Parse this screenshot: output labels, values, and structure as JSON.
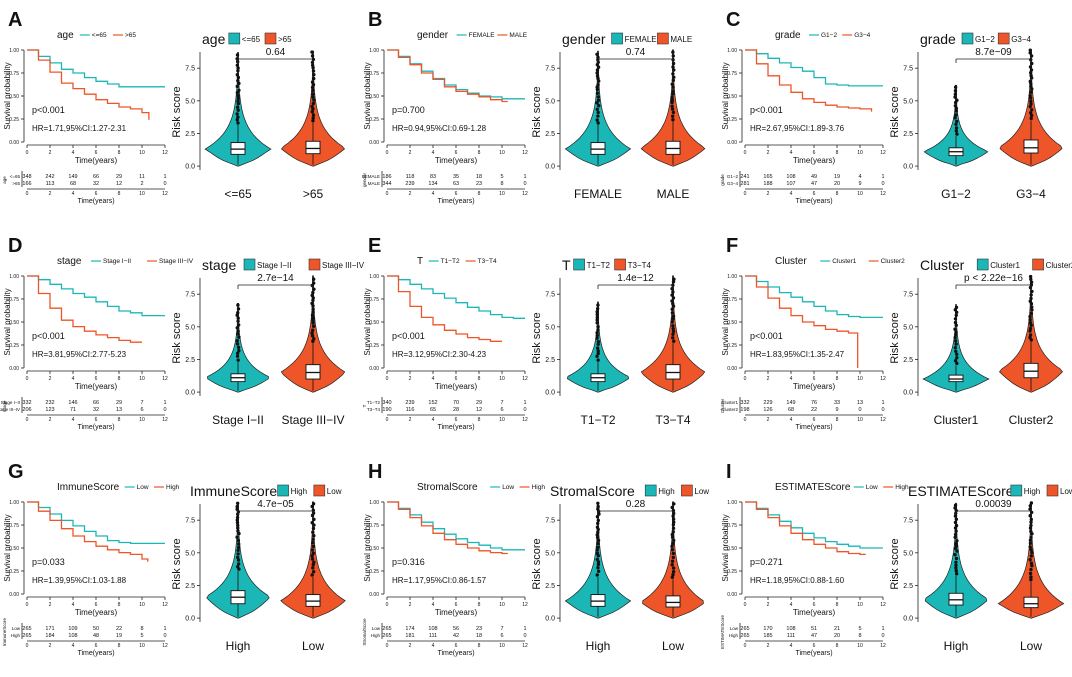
{
  "colors": {
    "low_group": "#1BB7B7",
    "high_group": "#EE5528",
    "axis": "#222222"
  },
  "common": {
    "survival_ylabel": "Survival probability",
    "time_xlabel": "Time(years)",
    "risk_ylabel": "Risk score",
    "time_ticks": [
      "0",
      "2",
      "4",
      "6",
      "8",
      "10",
      "12"
    ],
    "surv_ticks": [
      "0.00",
      "0.25",
      "0.50",
      "0.75",
      "1.00"
    ],
    "risk_ticks": [
      "0.0",
      "2.5",
      "5.0",
      "7.5"
    ]
  },
  "chart_data": [
    {
      "type": "composite-survival-violin",
      "panel": "A",
      "variable": "age",
      "groups": [
        "<=65",
        ">65"
      ],
      "km_legend": [
        "<=65",
        ">65"
      ],
      "p_value": "p<0.001",
      "hr_text": "HR=1.71,95%CI:1.27-2.31",
      "km": {
        "low": {
          "t": [
            0,
            1,
            2,
            3,
            4,
            5,
            6,
            7,
            8,
            9,
            10,
            11,
            12
          ],
          "s": [
            1,
            0.93,
            0.86,
            0.79,
            0.75,
            0.7,
            0.66,
            0.63,
            0.6,
            0.6,
            0.6,
            0.6,
            0.6
          ]
        },
        "high": {
          "t": [
            0,
            1,
            2,
            3,
            4,
            5,
            6,
            7,
            8,
            9,
            10,
            10.6
          ],
          "s": [
            1,
            0.89,
            0.76,
            0.64,
            0.58,
            0.52,
            0.46,
            0.42,
            0.38,
            0.36,
            0.32,
            0.24
          ]
        }
      },
      "risk_table": {
        "low": [
          "348",
          "242",
          "149",
          "66",
          "29",
          "11",
          "1"
        ],
        "high": [
          "166",
          "113",
          "68",
          "32",
          "12",
          "2",
          "0"
        ]
      },
      "violin_p": "0.64",
      "violin": {
        "low": {
          "median": 1.3,
          "q1": 0.9,
          "q3": 1.8,
          "max": 8.7
        },
        "high": {
          "median": 1.35,
          "q1": 0.95,
          "q3": 1.9,
          "max": 8.8
        }
      }
    },
    {
      "type": "composite-survival-violin",
      "panel": "B",
      "variable": "gender",
      "groups": [
        "FEMALE",
        "MALE"
      ],
      "km_legend": [
        "FEMALE",
        "MALE"
      ],
      "p_value": "p=0.700",
      "hr_text": "HR=0.94,95%CI:0.69-1.28",
      "km": {
        "low": {
          "t": [
            0,
            1,
            2,
            3,
            4,
            5,
            6,
            7,
            8,
            9,
            10,
            11,
            12
          ],
          "s": [
            1,
            0.93,
            0.85,
            0.77,
            0.69,
            0.62,
            0.57,
            0.53,
            0.5,
            0.49,
            0.47,
            0.47,
            0.47
          ]
        },
        "high": {
          "t": [
            0,
            1,
            2,
            3,
            4,
            5,
            6,
            7,
            8,
            9,
            10,
            10.5
          ],
          "s": [
            1,
            0.92,
            0.84,
            0.75,
            0.68,
            0.6,
            0.55,
            0.52,
            0.49,
            0.46,
            0.44,
            0.44
          ]
        }
      },
      "risk_table": {
        "low": [
          "186",
          "118",
          "83",
          "35",
          "18",
          "5",
          "1"
        ],
        "high": [
          "344",
          "239",
          "134",
          "63",
          "23",
          "8",
          "0"
        ]
      },
      "violin_p": "0.74",
      "violin": {
        "low": {
          "median": 1.3,
          "q1": 0.9,
          "q3": 1.8,
          "max": 8.8
        },
        "high": {
          "median": 1.35,
          "q1": 0.9,
          "q3": 1.9,
          "max": 8.9
        }
      }
    },
    {
      "type": "composite-survival-violin",
      "panel": "C",
      "variable": "grade",
      "groups": [
        "G1−2",
        "G3−4"
      ],
      "km_legend": [
        "G1−2",
        "G3−4"
      ],
      "p_value": "p<0.001",
      "hr_text": "HR=2.67,95%CI:1.89-3.76",
      "km": {
        "low": {
          "t": [
            0,
            1,
            2,
            3,
            4,
            5,
            6,
            7,
            8,
            9,
            10,
            11,
            12
          ],
          "s": [
            1,
            0.96,
            0.91,
            0.86,
            0.81,
            0.77,
            0.7,
            0.63,
            0.62,
            0.61,
            0.61,
            0.61,
            0.61
          ]
        },
        "high": {
          "t": [
            0,
            1,
            2,
            3,
            4,
            5,
            6,
            7,
            8,
            9,
            10,
            11
          ],
          "s": [
            1,
            0.85,
            0.72,
            0.62,
            0.54,
            0.47,
            0.43,
            0.4,
            0.38,
            0.37,
            0.36,
            0.33
          ]
        }
      },
      "risk_table": {
        "low": [
          "241",
          "165",
          "108",
          "49",
          "19",
          "4",
          "1"
        ],
        "high": [
          "281",
          "188",
          "107",
          "47",
          "20",
          "9",
          "0"
        ]
      },
      "violin_p": "8.7e−09",
      "violin": {
        "low": {
          "median": 1.1,
          "q1": 0.8,
          "q3": 1.4,
          "max": 6.2
        },
        "high": {
          "median": 1.4,
          "q1": 1.0,
          "q3": 2.0,
          "max": 8.9
        }
      }
    },
    {
      "type": "composite-survival-violin",
      "panel": "D",
      "variable": "stage",
      "groups": [
        "Stage I−II",
        "Stage III−IV"
      ],
      "km_legend": [
        "Stage I−II",
        "Stage III−IV"
      ],
      "p_value": "p<0.001",
      "hr_text": "HR=3.81,95%CI:2.77-5.23",
      "km": {
        "low": {
          "t": [
            0,
            1,
            2,
            3,
            4,
            5,
            6,
            7,
            8,
            9,
            10,
            11,
            12
          ],
          "s": [
            1,
            0.96,
            0.91,
            0.86,
            0.81,
            0.77,
            0.72,
            0.67,
            0.62,
            0.6,
            0.57,
            0.57,
            0.57
          ]
        },
        "high": {
          "t": [
            0,
            1,
            2,
            3,
            4,
            5,
            6,
            7,
            8,
            9,
            10
          ],
          "s": [
            1,
            0.81,
            0.65,
            0.52,
            0.45,
            0.4,
            0.36,
            0.33,
            0.3,
            0.28,
            0.28
          ]
        }
      },
      "risk_table": {
        "low": [
          "332",
          "232",
          "146",
          "66",
          "29",
          "7",
          "1"
        ],
        "high": [
          "206",
          "123",
          "71",
          "32",
          "13",
          "6",
          "0"
        ]
      },
      "violin_p": "2.7e−14",
      "violin": {
        "low": {
          "median": 1.1,
          "q1": 0.8,
          "q3": 1.4,
          "max": 6.8
        },
        "high": {
          "median": 1.5,
          "q1": 1.0,
          "q3": 2.1,
          "max": 8.9
        }
      }
    },
    {
      "type": "composite-survival-violin",
      "panel": "E",
      "variable": "T",
      "groups": [
        "T1−T2",
        "T3−T4"
      ],
      "km_legend": [
        "T1−T2",
        "T3−T4"
      ],
      "p_value": "p<0.001",
      "hr_text": "HR=3.12,95%CI:2.30-4.23",
      "km": {
        "low": {
          "t": [
            0,
            1,
            2,
            3,
            4,
            5,
            6,
            7,
            8,
            9,
            10,
            11,
            12
          ],
          "s": [
            1,
            0.96,
            0.91,
            0.86,
            0.81,
            0.76,
            0.71,
            0.66,
            0.62,
            0.58,
            0.55,
            0.54,
            0.54
          ]
        },
        "high": {
          "t": [
            0,
            1,
            2,
            3,
            4,
            5,
            6,
            7,
            8,
            9,
            10
          ],
          "s": [
            1,
            0.83,
            0.67,
            0.55,
            0.47,
            0.41,
            0.37,
            0.33,
            0.31,
            0.29,
            0.29
          ]
        }
      },
      "risk_table": {
        "low": [
          "340",
          "239",
          "152",
          "70",
          "29",
          "7",
          "1"
        ],
        "high": [
          "190",
          "116",
          "65",
          "28",
          "12",
          "6",
          "0"
        ]
      },
      "violin_p": "1.4e−12",
      "violin": {
        "low": {
          "median": 1.1,
          "q1": 0.8,
          "q3": 1.4,
          "max": 6.9
        },
        "high": {
          "median": 1.5,
          "q1": 1.0,
          "q3": 2.1,
          "max": 8.9
        }
      }
    },
    {
      "type": "composite-survival-violin",
      "panel": "F",
      "variable": "Cluster",
      "groups": [
        "Cluster1",
        "Cluster2"
      ],
      "km_legend": [
        "Cluster1",
        "Cluster2"
      ],
      "p_value": "p<0.001",
      "hr_text": "HR=1.83,95%CI:1.35-2.47",
      "km": {
        "low": {
          "t": [
            0,
            1,
            2,
            3,
            4,
            5,
            6,
            7,
            8,
            9,
            10,
            11,
            12
          ],
          "s": [
            1,
            0.94,
            0.88,
            0.82,
            0.77,
            0.72,
            0.67,
            0.62,
            0.58,
            0.56,
            0.55,
            0.55,
            0.55
          ]
        },
        "high": {
          "t": [
            0,
            1,
            2,
            3,
            4,
            5,
            6,
            7,
            8,
            9,
            9.8,
            9.8
          ],
          "s": [
            1,
            0.88,
            0.76,
            0.65,
            0.57,
            0.5,
            0.46,
            0.42,
            0.4,
            0.38,
            0.38,
            0.0
          ]
        }
      },
      "risk_table": {
        "low": [
          "332",
          "229",
          "149",
          "76",
          "33",
          "13",
          "1"
        ],
        "high": [
          "198",
          "126",
          "68",
          "22",
          "9",
          "0",
          "0"
        ]
      },
      "violin_p": "p < 2.22e−16",
      "violin": {
        "low": {
          "median": 1.0,
          "q1": 0.8,
          "q3": 1.3,
          "max": 6.7
        },
        "high": {
          "median": 1.6,
          "q1": 1.1,
          "q3": 2.2,
          "max": 8.9
        }
      }
    },
    {
      "type": "composite-survival-violin",
      "panel": "G",
      "variable": "ImmuneScore",
      "groups": [
        "High",
        "Low"
      ],
      "km_legend": [
        "Low",
        "High"
      ],
      "p_value": "p=0.033",
      "hr_text": "HR=1.39,95%CI:1.03-1.88",
      "km": {
        "low": {
          "t": [
            0,
            1,
            2,
            3,
            4,
            5,
            6,
            7,
            8,
            9,
            10,
            11,
            12
          ],
          "s": [
            1,
            0.94,
            0.87,
            0.8,
            0.74,
            0.68,
            0.63,
            0.58,
            0.56,
            0.55,
            0.55,
            0.55,
            0.55
          ]
        },
        "high": {
          "t": [
            0,
            1,
            2,
            3,
            4,
            5,
            6,
            7,
            8,
            9,
            10,
            10.5
          ],
          "s": [
            1,
            0.9,
            0.8,
            0.71,
            0.63,
            0.57,
            0.52,
            0.48,
            0.45,
            0.43,
            0.38,
            0.35
          ]
        }
      },
      "risk_table": {
        "low": [
          "265",
          "171",
          "109",
          "50",
          "22",
          "8",
          "1"
        ],
        "high": [
          "265",
          "184",
          "108",
          "48",
          "19",
          "5",
          "0"
        ]
      },
      "violin_p": "4.7e−05",
      "violin": {
        "low": {
          "median": 1.6,
          "q1": 1.1,
          "q3": 2.1,
          "max": 8.8
        },
        "high": {
          "median": 1.3,
          "q1": 0.9,
          "q3": 1.8,
          "max": 8.9
        }
      }
    },
    {
      "type": "composite-survival-violin",
      "panel": "H",
      "variable": "StromalScore",
      "groups": [
        "High",
        "Low"
      ],
      "km_legend": [
        "Low",
        "High"
      ],
      "p_value": "p=0.316",
      "hr_text": "HR=1.17,95%CI:0.86-1.57",
      "km": {
        "low": {
          "t": [
            0,
            1,
            2,
            3,
            4,
            5,
            6,
            7,
            8,
            9,
            10,
            11,
            12
          ],
          "s": [
            1,
            0.93,
            0.86,
            0.78,
            0.71,
            0.65,
            0.6,
            0.56,
            0.53,
            0.5,
            0.48,
            0.48,
            0.48
          ]
        },
        "high": {
          "t": [
            0,
            1,
            2,
            3,
            4,
            5,
            6,
            7,
            8,
            9,
            10,
            10.5
          ],
          "s": [
            1,
            0.92,
            0.83,
            0.74,
            0.66,
            0.59,
            0.54,
            0.5,
            0.47,
            0.45,
            0.44,
            0.44
          ]
        }
      },
      "risk_table": {
        "low": [
          "265",
          "174",
          "108",
          "56",
          "23",
          "7",
          "1"
        ],
        "high": [
          "265",
          "181",
          "111",
          "42",
          "18",
          "6",
          "0"
        ]
      },
      "violin_p": "0.28",
      "violin": {
        "low": {
          "median": 1.3,
          "q1": 0.9,
          "q3": 1.8,
          "max": 8.8
        },
        "high": {
          "median": 1.2,
          "q1": 0.85,
          "q3": 1.7,
          "max": 8.9
        }
      }
    },
    {
      "type": "composite-survival-violin",
      "panel": "I",
      "variable": "ESTIMATEScore",
      "groups": [
        "High",
        "Low"
      ],
      "km_legend": [
        "Low",
        "High"
      ],
      "p_value": "p=0.271",
      "hr_text": "HR=1.18,95%CI:0.88-1.60",
      "km": {
        "low": {
          "t": [
            0,
            1,
            2,
            3,
            4,
            5,
            6,
            7,
            8,
            9,
            10,
            11,
            12
          ],
          "s": [
            1,
            0.93,
            0.86,
            0.79,
            0.72,
            0.66,
            0.61,
            0.57,
            0.54,
            0.52,
            0.5,
            0.5,
            0.5
          ]
        },
        "high": {
          "t": [
            0,
            1,
            2,
            3,
            4,
            5,
            6,
            7,
            8,
            9,
            10,
            10.5
          ],
          "s": [
            1,
            0.92,
            0.83,
            0.74,
            0.66,
            0.59,
            0.54,
            0.5,
            0.46,
            0.44,
            0.43,
            0.43
          ]
        }
      },
      "risk_table": {
        "low": [
          "265",
          "170",
          "108",
          "51",
          "21",
          "5",
          "1"
        ],
        "high": [
          "265",
          "185",
          "111",
          "47",
          "20",
          "8",
          "0"
        ]
      },
      "violin_p": "0.00039",
      "violin": {
        "low": {
          "median": 1.4,
          "q1": 1.0,
          "q3": 1.9,
          "max": 8.8
        },
        "high": {
          "median": 1.1,
          "q1": 0.8,
          "q3": 1.6,
          "max": 8.9
        }
      }
    }
  ]
}
